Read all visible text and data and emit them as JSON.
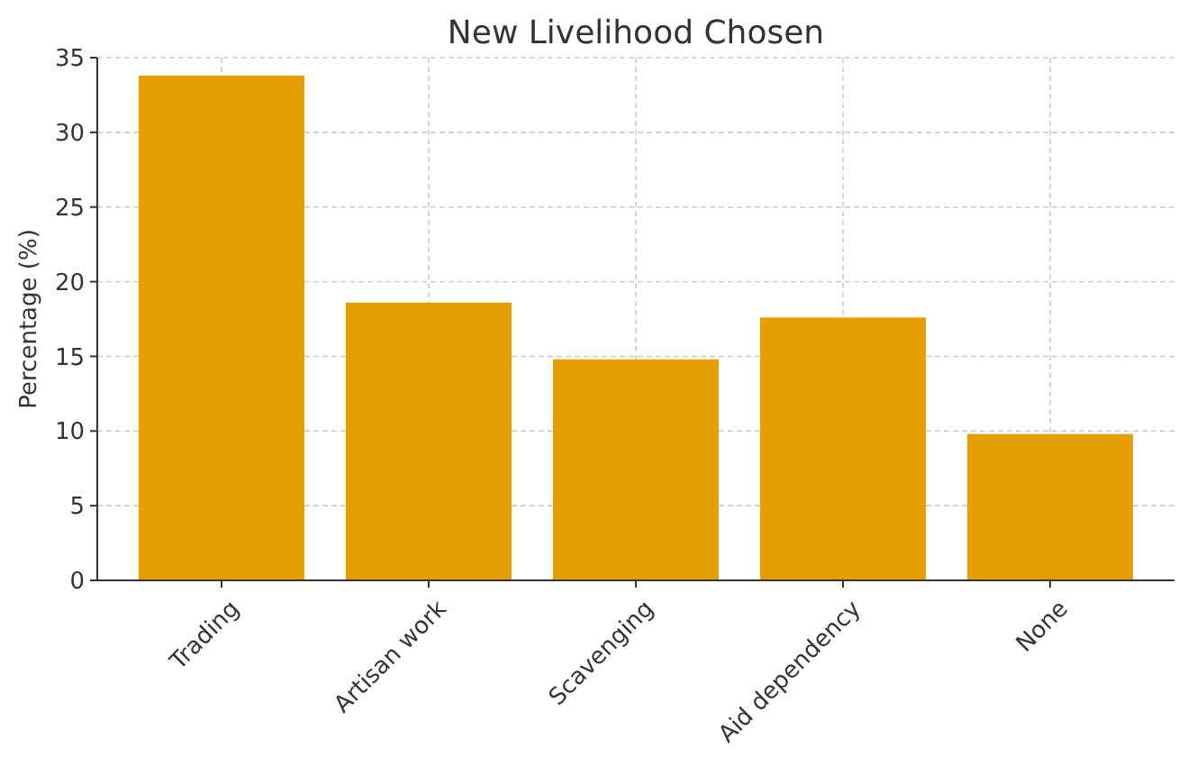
{
  "chart_data": {
    "type": "bar",
    "title": "New Livelihood Chosen",
    "ylabel": "Percentage (%)",
    "categories": [
      "Trading",
      "Artisan work",
      "Scavenging",
      "Aid dependency",
      "None"
    ],
    "values": [
      33.8,
      18.6,
      14.8,
      17.6,
      9.8
    ],
    "color": "#e69f00",
    "ylim": [
      0,
      35
    ],
    "yticks": [
      0,
      5,
      10,
      15,
      20,
      25,
      30,
      35
    ],
    "grid": true
  }
}
